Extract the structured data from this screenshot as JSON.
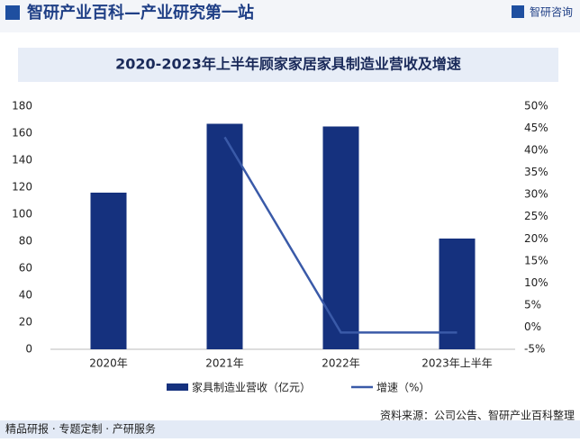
{
  "header": {
    "title": "智研产业百科—产业研究第一站",
    "brand": "智研咨询"
  },
  "chart_data": {
    "type": "bar",
    "title": "2020-2023年上半年顾家家居家具制造业营收及增速",
    "categories": [
      "2020年",
      "2021年",
      "2022年",
      "2023年上半年"
    ],
    "series": [
      {
        "name": "家具制造业营收（亿元）",
        "type": "bar",
        "color": "#15317e",
        "values": [
          116,
          167,
          165,
          82
        ]
      },
      {
        "name": "增速（%）",
        "type": "line",
        "axis": "y2",
        "color": "#3a5aa8",
        "values": [
          null,
          43,
          -1.2,
          -1.2
        ]
      }
    ],
    "ylim": [
      0,
      180
    ],
    "yticks": [
      0,
      20,
      40,
      60,
      80,
      100,
      120,
      140,
      160,
      180
    ],
    "y2lim": [
      -5,
      50
    ],
    "y2ticks": [
      {
        "value": -5,
        "label": "-5%"
      },
      {
        "value": 0,
        "label": "0%"
      },
      {
        "value": 5,
        "label": "5%"
      },
      {
        "value": 10,
        "label": "10%"
      },
      {
        "value": 15,
        "label": "15%"
      },
      {
        "value": 20,
        "label": "20%"
      },
      {
        "value": 25,
        "label": "25%"
      },
      {
        "value": 30,
        "label": "30%"
      },
      {
        "value": 35,
        "label": "35%"
      },
      {
        "value": 40,
        "label": "40%"
      },
      {
        "value": 45,
        "label": "45%"
      },
      {
        "value": 50,
        "label": "50%"
      }
    ]
  },
  "footer": {
    "left": "精品研报 · 专题定制 · 产研服务",
    "source": "资料来源：公司公告、智研产业百科整理"
  }
}
